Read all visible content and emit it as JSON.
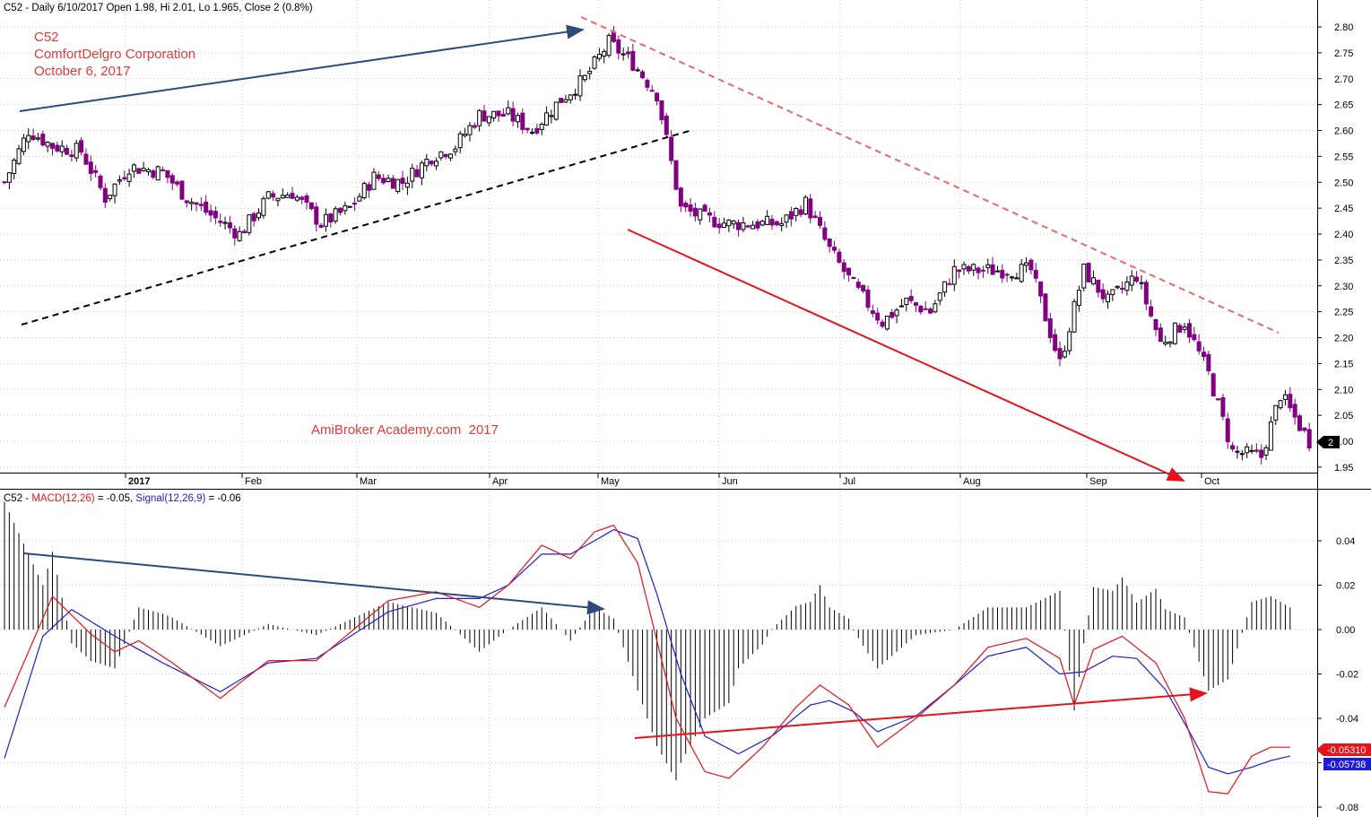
{
  "header": {
    "symbol": "C52",
    "interval": "Daily",
    "date": "6/10/2017",
    "open_text": "Open 1.98",
    "hi_text": "Hi 2.01",
    "lo_text": "Lo 1.965",
    "close_text": "Close 2 (0.8%)"
  },
  "annotations": {
    "ticker": "C52",
    "company": "ComfortDelgro Corporation",
    "date": "October 6, 2017",
    "watermark": "AmiBroker Academy.com  2017",
    "last_price_tag": "2"
  },
  "macd_header": {
    "prefix": "C52 - ",
    "macd_label": "MACD(12,26)",
    "macd_value_text": " = -0.05, ",
    "signal_label": "Signal(12,26,9)",
    "signal_value_text": " = -0.06"
  },
  "macd_tags": {
    "macd": "-0.05310",
    "signal": "-0.05738"
  },
  "colors": {
    "candle_down": "#800080",
    "candle_up": "#ffffff",
    "macd_line": "#e8121a",
    "signal_line": "#1c1cd8",
    "histogram": "#000000",
    "annotation_text": "#e03c3c",
    "trend_blue": "#2e4a7a",
    "trend_red": "#e8121a",
    "grid": "#c9c9c9"
  },
  "chart_data": [
    {
      "type": "candlestick",
      "title": "C52 - Daily 6/10/2017 Open 1.98, Hi 2.01, Lo 1.965, Close 2 (0.8%)",
      "x_axis_labels": [
        "2017",
        "Feb",
        "Mar",
        "Apr",
        "May",
        "Jun",
        "Jul",
        "Aug",
        "Sep",
        "Oct"
      ],
      "y_axis_ticks": [
        1.95,
        2.0,
        2.05,
        2.1,
        2.15,
        2.2,
        2.25,
        2.3,
        2.35,
        2.4,
        2.45,
        2.5,
        2.55,
        2.6,
        2.65,
        2.7,
        2.75,
        2.8
      ],
      "ylim": [
        1.93,
        2.82
      ],
      "grid": true,
      "close_path_points": [
        [
          0,
          2.5
        ],
        [
          5,
          2.6
        ],
        [
          10,
          2.57
        ],
        [
          16,
          2.56
        ],
        [
          21,
          2.47
        ],
        [
          26,
          2.53
        ],
        [
          33,
          2.52
        ],
        [
          38,
          2.47
        ],
        [
          44,
          2.43
        ],
        [
          49,
          2.4
        ],
        [
          55,
          2.47
        ],
        [
          60,
          2.48
        ],
        [
          66,
          2.42
        ],
        [
          72,
          2.45
        ],
        [
          77,
          2.51
        ],
        [
          83,
          2.5
        ],
        [
          89,
          2.55
        ],
        [
          94,
          2.57
        ],
        [
          99,
          2.63
        ],
        [
          105,
          2.63
        ],
        [
          110,
          2.6
        ],
        [
          116,
          2.66
        ],
        [
          121,
          2.7
        ],
        [
          126,
          2.77
        ],
        [
          131,
          2.73
        ],
        [
          136,
          2.67
        ],
        [
          141,
          2.45
        ],
        [
          146,
          2.43
        ],
        [
          151,
          2.42
        ],
        [
          157,
          2.42
        ],
        [
          162,
          2.42
        ],
        [
          167,
          2.46
        ],
        [
          172,
          2.37
        ],
        [
          177,
          2.3
        ],
        [
          183,
          2.23
        ],
        [
          188,
          2.27
        ],
        [
          193,
          2.25
        ],
        [
          198,
          2.33
        ],
        [
          204,
          2.33
        ],
        [
          209,
          2.33
        ],
        [
          214,
          2.33
        ],
        [
          220,
          2.15
        ],
        [
          225,
          2.33
        ],
        [
          230,
          2.27
        ],
        [
          236,
          2.32
        ],
        [
          241,
          2.19
        ],
        [
          246,
          2.23
        ],
        [
          251,
          2.13
        ],
        [
          256,
          1.98
        ],
        [
          262,
          1.97
        ],
        [
          266,
          2.09
        ],
        [
          272,
          2.0
        ]
      ],
      "annotated_trend_lines": [
        "blue arrow up (Jan to late Apr highs)",
        "black dashed support",
        "red dashed resistance",
        "red arrow down (May to Oct lows)"
      ]
    },
    {
      "type": "line",
      "title": "C52 - MACD(12,26) = -0.05, Signal(12,26,9) = -0.06",
      "y_axis_ticks": [
        -0.08,
        -0.06,
        -0.04,
        -0.02,
        0.0,
        0.02,
        0.04
      ],
      "ylim": [
        -0.082,
        0.055
      ],
      "grid": true,
      "series": [
        {
          "name": "MACD(12,26)",
          "points": [
            [
              0,
              -0.035
            ],
            [
              10,
              0.015
            ],
            [
              18,
              -0.002
            ],
            [
              23,
              -0.01
            ],
            [
              28,
              -0.005
            ],
            [
              35,
              -0.015
            ],
            [
              45,
              -0.031
            ],
            [
              55,
              -0.014
            ],
            [
              65,
              -0.014
            ],
            [
              80,
              0.013
            ],
            [
              90,
              0.017
            ],
            [
              99,
              0.01
            ],
            [
              105,
              0.02
            ],
            [
              112,
              0.038
            ],
            [
              118,
              0.032
            ],
            [
              123,
              0.044
            ],
            [
              127,
              0.047
            ],
            [
              132,
              0.03
            ],
            [
              136,
              -0.005
            ],
            [
              140,
              -0.04
            ],
            [
              146,
              -0.064
            ],
            [
              151,
              -0.067
            ],
            [
              158,
              -0.053
            ],
            [
              165,
              -0.035
            ],
            [
              170,
              -0.025
            ],
            [
              176,
              -0.034
            ],
            [
              182,
              -0.053
            ],
            [
              190,
              -0.04
            ],
            [
              198,
              -0.025
            ],
            [
              205,
              -0.008
            ],
            [
              213,
              -0.004
            ],
            [
              220,
              -0.013
            ],
            [
              223,
              -0.034
            ],
            [
              227,
              -0.009
            ],
            [
              233,
              -0.003
            ],
            [
              240,
              -0.015
            ],
            [
              246,
              -0.04
            ],
            [
              251,
              -0.073
            ],
            [
              255,
              -0.074
            ],
            [
              260,
              -0.057
            ],
            [
              264,
              -0.053
            ],
            [
              268,
              -0.053
            ]
          ]
        },
        {
          "name": "Signal(12,26,9)",
          "points": [
            [
              0,
              -0.058
            ],
            [
              8,
              -0.003
            ],
            [
              14,
              0.009
            ],
            [
              23,
              -0.003
            ],
            [
              33,
              -0.015
            ],
            [
              45,
              -0.028
            ],
            [
              55,
              -0.015
            ],
            [
              65,
              -0.013
            ],
            [
              80,
              0.008
            ],
            [
              90,
              0.014
            ],
            [
              99,
              0.014
            ],
            [
              105,
              0.02
            ],
            [
              112,
              0.034
            ],
            [
              118,
              0.034
            ],
            [
              123,
              0.04
            ],
            [
              127,
              0.045
            ],
            [
              132,
              0.041
            ],
            [
              136,
              0.016
            ],
            [
              141,
              -0.02
            ],
            [
              146,
              -0.048
            ],
            [
              153,
              -0.056
            ],
            [
              160,
              -0.048
            ],
            [
              168,
              -0.034
            ],
            [
              172,
              -0.032
            ],
            [
              177,
              -0.037
            ],
            [
              182,
              -0.046
            ],
            [
              190,
              -0.039
            ],
            [
              198,
              -0.025
            ],
            [
              205,
              -0.012
            ],
            [
              213,
              -0.008
            ],
            [
              220,
              -0.02
            ],
            [
              225,
              -0.019
            ],
            [
              231,
              -0.012
            ],
            [
              236,
              -0.013
            ],
            [
              242,
              -0.027
            ],
            [
              247,
              -0.046
            ],
            [
              251,
              -0.062
            ],
            [
              255,
              -0.065
            ],
            [
              260,
              -0.062
            ],
            [
              264,
              -0.059
            ],
            [
              268,
              -0.057
            ]
          ]
        }
      ],
      "annotated_trend_lines": [
        "blue arrow down on MACD peaks (bearish divergence)",
        "red arrow up on MACD troughs (bullish divergence)"
      ]
    }
  ]
}
